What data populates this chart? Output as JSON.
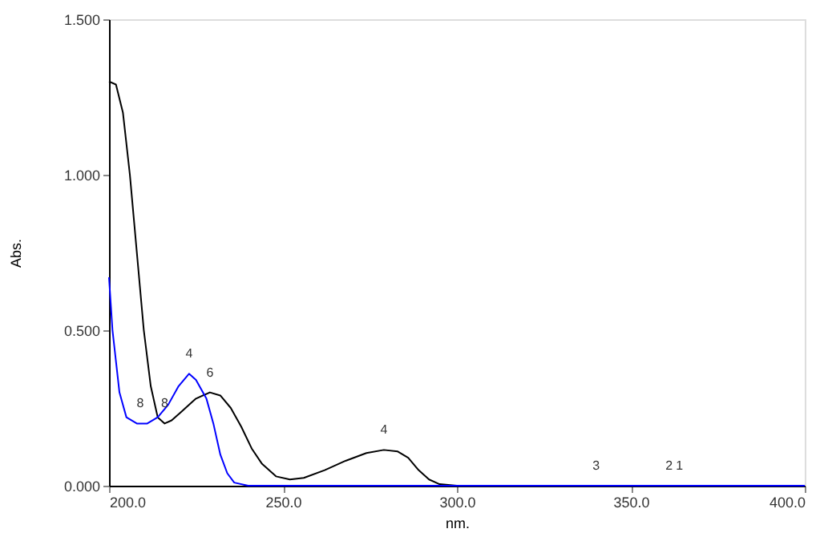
{
  "chart_data": {
    "type": "line",
    "xlabel": "nm.",
    "ylabel": "Abs.",
    "xlim": [
      200,
      400
    ],
    "xticks": [
      {
        "value": 200,
        "label": "200.0"
      },
      {
        "value": 250,
        "label": "250.0"
      },
      {
        "value": 300,
        "label": "300.0"
      },
      {
        "value": 350,
        "label": "350.0"
      },
      {
        "value": 400,
        "label": "400.0"
      }
    ],
    "ylim": [
      0,
      1.5
    ],
    "yticks": [
      {
        "value": 0,
        "label": "0.000"
      },
      {
        "value": 0.5,
        "label": "0.500"
      },
      {
        "value": 1.0,
        "label": "1.000"
      },
      {
        "value": 1.5,
        "label": "1.500"
      }
    ],
    "grid": false,
    "line_style": "solid",
    "series": [
      {
        "color": "#000000",
        "x": [
          200,
          202,
          204,
          206,
          208,
          210,
          212,
          214,
          216,
          218,
          221,
          225,
          229,
          232,
          235,
          238,
          241,
          244,
          248,
          252,
          256,
          262,
          268,
          274,
          279,
          283,
          286,
          289,
          292,
          295,
          300,
          400
        ],
        "values": [
          1.3,
          1.29,
          1.2,
          1.0,
          0.75,
          0.5,
          0.32,
          0.22,
          0.2,
          0.21,
          0.24,
          0.28,
          0.3,
          0.29,
          0.25,
          0.19,
          0.12,
          0.07,
          0.03,
          0.02,
          0.025,
          0.05,
          0.08,
          0.105,
          0.115,
          0.11,
          0.09,
          0.05,
          0.02,
          0.005,
          0,
          0
        ]
      },
      {
        "color": "#0000ff",
        "x": [
          200,
          201,
          203,
          205,
          208,
          211,
          214,
          217,
          220,
          223,
          225,
          228,
          230,
          232,
          234,
          236,
          240,
          400
        ],
        "values": [
          0.67,
          0.5,
          0.3,
          0.22,
          0.2,
          0.2,
          0.22,
          0.26,
          0.32,
          0.36,
          0.34,
          0.28,
          0.2,
          0.1,
          0.04,
          0.01,
          0,
          0
        ]
      }
    ],
    "annotations": [
      {
        "text": "8",
        "x": 209,
        "y": 0.2
      },
      {
        "text": "8",
        "x": 216,
        "y": 0.2
      },
      {
        "text": "4",
        "x": 223,
        "y": 0.36
      },
      {
        "text": "6",
        "x": 229,
        "y": 0.3
      },
      {
        "text": "4",
        "x": 279,
        "y": 0.115
      },
      {
        "text": "3",
        "x": 340,
        "y": 0
      },
      {
        "text": "2",
        "x": 361,
        "y": 0
      },
      {
        "text": "1",
        "x": 364,
        "y": 0
      }
    ]
  }
}
